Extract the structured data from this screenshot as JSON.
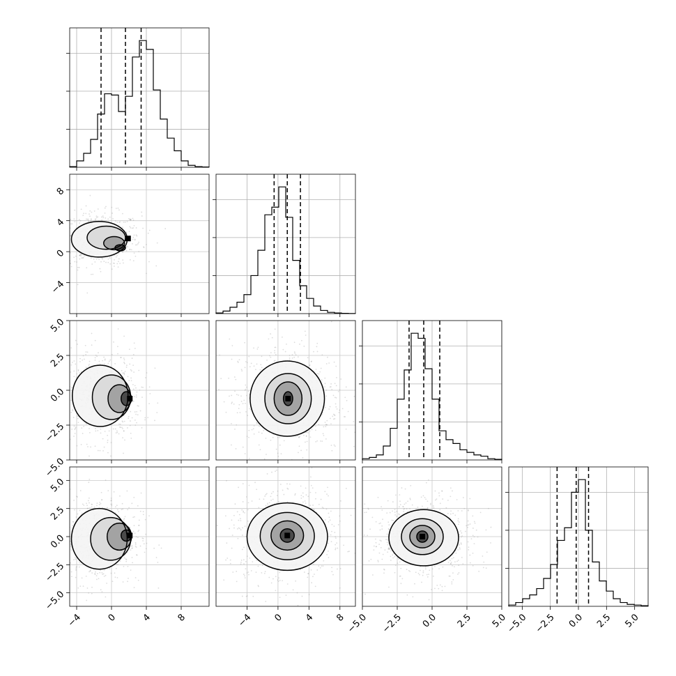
{
  "chart_data": {
    "type": "corner",
    "grid": true,
    "n_params": 4,
    "parameters": [
      {
        "name": "",
        "range": [
          -4.8,
          11.2
        ],
        "ticks": [
          -4,
          0,
          4,
          8
        ],
        "tick_labels": [
          "−4",
          "0",
          "4",
          "8"
        ],
        "quantiles": [
          -1.2,
          1.6,
          3.4
        ],
        "hist_edges_start": -4.8,
        "hist_bin_width": 0.8,
        "hist_counts": [
          0.05,
          0.5,
          1.1,
          2.2,
          4.2,
          5.8,
          5.7,
          4.4,
          5.6,
          8.7,
          10.0,
          9.3,
          6.1,
          3.8,
          2.3,
          1.3,
          0.5,
          0.15,
          0.05,
          0.02
        ]
      },
      {
        "name": "",
        "range": [
          -8,
          10
        ],
        "ticks": [
          -4,
          0,
          4,
          8
        ],
        "tick_labels": [
          "−4",
          "0",
          "4",
          "8"
        ],
        "quantiles": [
          -0.5,
          1.2,
          2.9
        ],
        "hist_edges_start": -8,
        "hist_bin_width": 0.9,
        "hist_counts": [
          0.05,
          0.2,
          0.5,
          0.9,
          1.5,
          3.0,
          5.0,
          7.8,
          8.4,
          10.0,
          7.6,
          4.2,
          2.2,
          1.2,
          0.6,
          0.25,
          0.1,
          0.05,
          0.02,
          0.01
        ]
      },
      {
        "name": "",
        "range": [
          -5,
          5
        ],
        "ticks": [
          -5.0,
          -2.5,
          0.0,
          2.5,
          5.0
        ],
        "tick_labels": [
          "−5.0",
          "−2.5",
          "0.0",
          "2.5",
          "5.0"
        ],
        "quantiles": [
          -1.65,
          -0.6,
          0.55
        ],
        "hist_edges_start": -5,
        "hist_bin_width": 0.5,
        "hist_counts": [
          0.1,
          0.2,
          0.4,
          1.1,
          2.5,
          4.8,
          7.1,
          10.0,
          9.6,
          7.2,
          4.8,
          2.3,
          1.6,
          1.3,
          0.8,
          0.6,
          0.4,
          0.3,
          0.1,
          0.05
        ]
      },
      {
        "name": "",
        "range": [
          -6.2,
          6.2
        ],
        "ticks": [
          -5.0,
          -2.5,
          0.0,
          2.5,
          5.0
        ],
        "tick_labels": [
          "−5.0",
          "−2.5",
          "0.0",
          "2.5",
          "5.0"
        ],
        "quantiles": [
          -1.9,
          -0.2,
          0.9
        ],
        "hist_edges_start": -6.2,
        "hist_bin_width": 0.62,
        "hist_counts": [
          0.1,
          0.3,
          0.6,
          0.9,
          1.4,
          2.2,
          3.3,
          5.2,
          6.2,
          9.0,
          10.0,
          6.0,
          3.5,
          2.0,
          1.2,
          0.6,
          0.3,
          0.15,
          0.1,
          0.05
        ]
      }
    ],
    "pairs": [
      {
        "row": 1,
        "col": 0,
        "center": [
          1.9,
          1.7
        ],
        "contours": [
          [
            -1.4,
            1.6,
            3.2,
            2.3
          ],
          [
            -0.6,
            1.8,
            2.2,
            1.5
          ],
          [
            0.3,
            1.1,
            1.2,
            0.85
          ],
          [
            1.0,
            0.5,
            0.6,
            0.4
          ]
        ]
      },
      {
        "row": 2,
        "col": 0,
        "center": [
          2.1,
          -0.6
        ],
        "contours": [
          [
            -1.3,
            -0.4,
            3.2,
            2.2
          ],
          [
            0.0,
            -0.5,
            2.2,
            1.6
          ],
          [
            0.9,
            -0.6,
            1.3,
            1.0
          ],
          [
            1.7,
            -0.6,
            0.6,
            0.5
          ]
        ]
      },
      {
        "row": 3,
        "col": 0,
        "center": [
          2.1,
          0.1
        ],
        "contours": [
          [
            -1.4,
            -0.2,
            3.2,
            2.7
          ],
          [
            -0.1,
            -0.2,
            2.3,
            1.9
          ],
          [
            0.9,
            0.0,
            1.4,
            1.2
          ],
          [
            1.7,
            0.1,
            0.6,
            0.5
          ]
        ]
      },
      {
        "row": 2,
        "col": 1,
        "center": [
          1.3,
          -0.6
        ],
        "contours": [
          [
            1.2,
            -0.6,
            4.8,
            2.7
          ],
          [
            1.3,
            -0.6,
            3.0,
            1.8
          ],
          [
            1.3,
            -0.6,
            1.8,
            1.2
          ],
          [
            1.3,
            -0.6,
            0.6,
            0.5
          ]
        ]
      },
      {
        "row": 3,
        "col": 1,
        "center": [
          1.2,
          0.1
        ],
        "contours": [
          [
            1.2,
            0.0,
            5.2,
            3.0
          ],
          [
            1.2,
            0.05,
            3.5,
            2.1
          ],
          [
            1.2,
            0.1,
            2.1,
            1.3
          ],
          [
            1.2,
            0.1,
            0.9,
            0.6
          ]
        ]
      },
      {
        "row": 3,
        "col": 2,
        "center": [
          -0.7,
          0.0
        ],
        "contours": [
          [
            -0.6,
            -0.1,
            2.5,
            2.5
          ],
          [
            -0.7,
            0.0,
            1.5,
            1.6
          ],
          [
            -0.7,
            0.0,
            0.9,
            1.0
          ],
          [
            -0.7,
            0.0,
            0.4,
            0.5
          ]
        ]
      }
    ]
  }
}
